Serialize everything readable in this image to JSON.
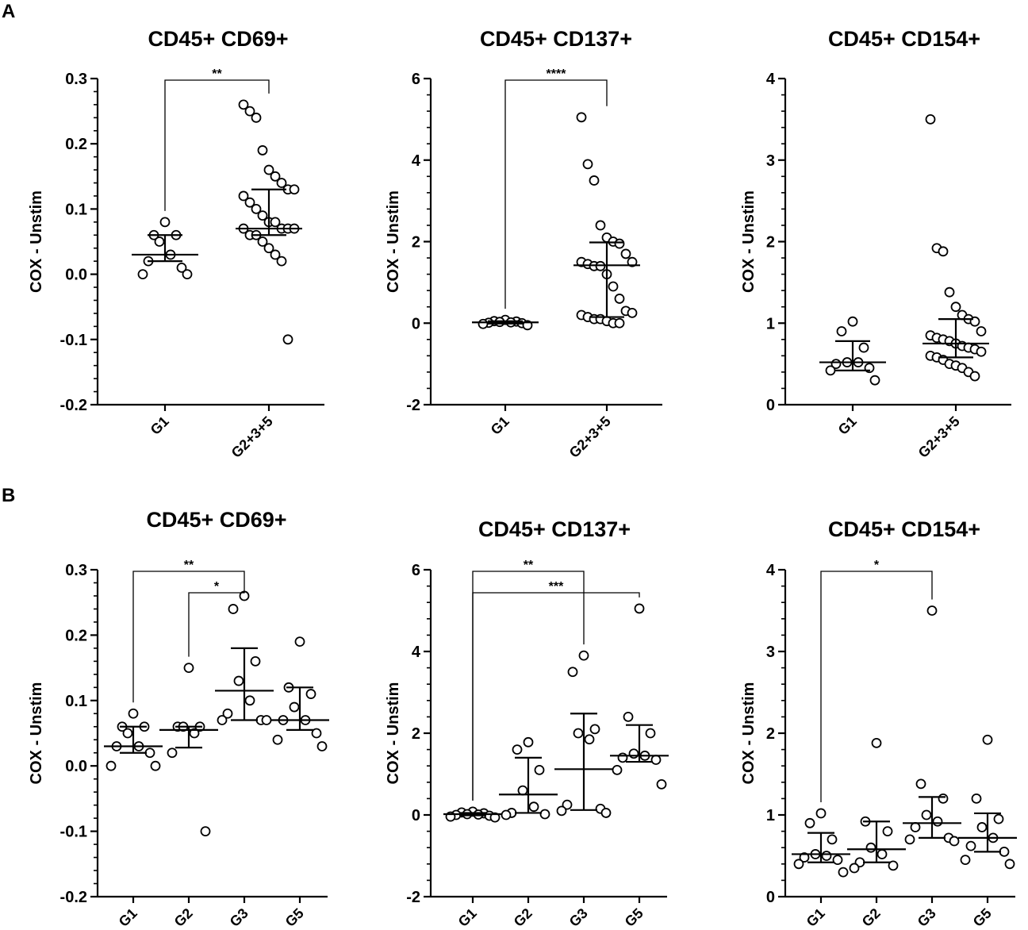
{
  "figure": {
    "panel_a_label": "A",
    "panel_b_label": "B"
  },
  "chart_data": [
    {
      "id": "A1",
      "type": "scatter",
      "title": "CD45+ CD69+",
      "ylabel": "COX - Unstim",
      "xlabel": "",
      "ylim": [
        -0.2,
        0.3
      ],
      "yticks": [
        -0.2,
        -0.1,
        0.0,
        0.1,
        0.2,
        0.3
      ],
      "ytick_labels": [
        "-0.2",
        "-0.1",
        "0.0",
        "0.1",
        "0.2",
        "0.3"
      ],
      "categories": [
        "G1",
        "G2+3+5"
      ],
      "series": [
        {
          "name": "G1",
          "points": [
            0.08,
            0.06,
            0.06,
            0.05,
            0.03,
            0.02,
            0.01,
            0.0,
            0.0
          ],
          "median": 0.03,
          "q1": 0.02,
          "q3": 0.06
        },
        {
          "name": "G2+3+5",
          "points": [
            0.26,
            0.25,
            0.24,
            0.19,
            0.16,
            0.15,
            0.14,
            0.13,
            0.13,
            0.12,
            0.11,
            0.1,
            0.09,
            0.08,
            0.08,
            0.07,
            0.07,
            0.07,
            0.07,
            0.06,
            0.06,
            0.05,
            0.04,
            0.03,
            0.02,
            -0.1
          ],
          "median": 0.07,
          "q1": 0.06,
          "q3": 0.13
        }
      ],
      "significance": [
        {
          "from": "G1",
          "to": "G2+3+5",
          "label": "**"
        }
      ]
    },
    {
      "id": "A2",
      "type": "scatter",
      "title": "CD45+ CD137+",
      "ylabel": "COX - Unstim",
      "xlabel": "",
      "ylim": [
        -2,
        6
      ],
      "yticks": [
        -2,
        0,
        2,
        4,
        6
      ],
      "ytick_labels": [
        "-2",
        "0",
        "2",
        "4",
        "6"
      ],
      "categories": [
        "G1",
        "G2+3+5"
      ],
      "series": [
        {
          "name": "G1",
          "points": [
            0.08,
            0.05,
            0.04,
            0.03,
            0.02,
            0.01,
            0.0,
            -0.02,
            -0.05
          ],
          "median": 0.02,
          "q1": -0.01,
          "q3": 0.05
        },
        {
          "name": "G2+3+5",
          "points": [
            5.05,
            3.9,
            3.5,
            2.4,
            2.1,
            2.0,
            1.95,
            1.7,
            1.5,
            1.5,
            1.45,
            1.4,
            1.4,
            1.2,
            0.9,
            0.6,
            0.3,
            0.25,
            0.2,
            0.15,
            0.1,
            0.1,
            0.05,
            0.0,
            0.0
          ],
          "median": 1.42,
          "q1": 0.15,
          "q3": 1.98
        }
      ],
      "significance": [
        {
          "from": "G1",
          "to": "G2+3+5",
          "label": "****"
        }
      ]
    },
    {
      "id": "A3",
      "type": "scatter",
      "title": "CD45+ CD154+",
      "ylabel": "COX - Unstim",
      "xlabel": "",
      "ylim": [
        0,
        4
      ],
      "yticks": [
        0,
        1,
        2,
        3,
        4
      ],
      "ytick_labels": [
        "0",
        "1",
        "2",
        "3",
        "4"
      ],
      "categories": [
        "G1",
        "G2+3+5"
      ],
      "series": [
        {
          "name": "G1",
          "points": [
            1.02,
            0.9,
            0.7,
            0.52,
            0.52,
            0.5,
            0.45,
            0.42,
            0.3
          ],
          "median": 0.52,
          "q1": 0.42,
          "q3": 0.78
        },
        {
          "name": "G2+3+5",
          "points": [
            3.5,
            1.92,
            1.88,
            1.38,
            1.2,
            1.1,
            1.05,
            1.02,
            0.9,
            0.85,
            0.82,
            0.8,
            0.78,
            0.75,
            0.72,
            0.7,
            0.68,
            0.65,
            0.6,
            0.58,
            0.55,
            0.5,
            0.48,
            0.45,
            0.4,
            0.35
          ],
          "median": 0.75,
          "q1": 0.58,
          "q3": 1.05
        }
      ],
      "significance": []
    },
    {
      "id": "B1",
      "type": "scatter",
      "title": "CD45+ CD69+",
      "ylabel": "COX - Unstim",
      "xlabel": "",
      "ylim": [
        -0.2,
        0.3
      ],
      "yticks": [
        -0.2,
        -0.1,
        0.0,
        0.1,
        0.2,
        0.3
      ],
      "ytick_labels": [
        "-0.2",
        "-0.1",
        "0.0",
        "0.1",
        "0.2",
        "0.3"
      ],
      "categories": [
        "G1",
        "G2",
        "G3",
        "G5"
      ],
      "series": [
        {
          "name": "G1",
          "points": [
            0.08,
            0.06,
            0.06,
            0.05,
            0.03,
            0.03,
            0.02,
            0.0,
            0.0
          ],
          "median": 0.03,
          "q1": 0.02,
          "q3": 0.06
        },
        {
          "name": "G2",
          "points": [
            0.15,
            0.06,
            0.06,
            0.06,
            0.05,
            0.02,
            -0.1
          ],
          "median": 0.055,
          "q1": 0.028,
          "q3": 0.06
        },
        {
          "name": "G3",
          "points": [
            0.26,
            0.24,
            0.16,
            0.13,
            0.1,
            0.08,
            0.07,
            0.07,
            0.07
          ],
          "median": 0.115,
          "q1": 0.07,
          "q3": 0.18
        },
        {
          "name": "G5",
          "points": [
            0.19,
            0.12,
            0.11,
            0.09,
            0.07,
            0.07,
            0.05,
            0.04,
            0.03
          ],
          "median": 0.07,
          "q1": 0.055,
          "q3": 0.12
        }
      ],
      "significance": [
        {
          "from": "G1",
          "to": "G3",
          "label": "**"
        },
        {
          "from": "G2",
          "to": "G3",
          "label": "*"
        }
      ]
    },
    {
      "id": "B2",
      "type": "scatter",
      "title": "CD45+ CD137+",
      "ylabel": "COX - Unstim",
      "xlabel": "",
      "ylim": [
        -2,
        6
      ],
      "yticks": [
        -2,
        0,
        2,
        4,
        6
      ],
      "ytick_labels": [
        "-2",
        "0",
        "2",
        "4",
        "6"
      ],
      "categories": [
        "G1",
        "G2",
        "G3",
        "G5"
      ],
      "series": [
        {
          "name": "G1",
          "points": [
            0.08,
            0.06,
            0.04,
            0.02,
            0.01,
            0.0,
            -0.02,
            -0.04,
            -0.06
          ],
          "median": 0.02,
          "q1": -0.01,
          "q3": 0.05
        },
        {
          "name": "G2",
          "points": [
            1.78,
            1.6,
            1.1,
            0.6,
            0.2,
            0.05,
            0.02,
            0.0
          ],
          "median": 0.5,
          "q1": 0.05,
          "q3": 1.4
        },
        {
          "name": "G3",
          "points": [
            3.9,
            3.5,
            2.1,
            2.0,
            1.85,
            0.25,
            0.15,
            0.1,
            0.05
          ],
          "median": 1.12,
          "q1": 0.12,
          "q3": 2.48
        },
        {
          "name": "G5",
          "points": [
            5.05,
            2.4,
            2.0,
            1.5,
            1.45,
            1.4,
            1.35,
            1.1,
            0.75
          ],
          "median": 1.45,
          "q1": 1.3,
          "q3": 2.2
        }
      ],
      "significance": [
        {
          "from": "G1",
          "to": "G3",
          "label": "**"
        },
        {
          "from": "G1",
          "to": "G5",
          "label": "***"
        }
      ]
    },
    {
      "id": "B3",
      "type": "scatter",
      "title": "CD45+ CD154+",
      "ylabel": "COX - Unstim",
      "xlabel": "",
      "ylim": [
        0,
        4
      ],
      "yticks": [
        0,
        1,
        2,
        3,
        4
      ],
      "ytick_labels": [
        "0",
        "1",
        "2",
        "3",
        "4"
      ],
      "categories": [
        "G1",
        "G2",
        "G3",
        "G5"
      ],
      "series": [
        {
          "name": "G1",
          "points": [
            1.02,
            0.9,
            0.7,
            0.52,
            0.5,
            0.48,
            0.45,
            0.4,
            0.3
          ],
          "median": 0.52,
          "q1": 0.42,
          "q3": 0.78
        },
        {
          "name": "G2",
          "points": [
            1.88,
            0.92,
            0.8,
            0.6,
            0.52,
            0.42,
            0.38,
            0.35
          ],
          "median": 0.58,
          "q1": 0.42,
          "q3": 0.92
        },
        {
          "name": "G3",
          "points": [
            3.5,
            1.38,
            1.2,
            1.0,
            0.92,
            0.85,
            0.72,
            0.7,
            0.68
          ],
          "median": 0.9,
          "q1": 0.72,
          "q3": 1.22
        },
        {
          "name": "G5",
          "points": [
            1.92,
            1.2,
            0.95,
            0.85,
            0.72,
            0.62,
            0.55,
            0.45,
            0.4
          ],
          "median": 0.72,
          "q1": 0.55,
          "q3": 1.02
        }
      ],
      "significance": [
        {
          "from": "G1",
          "to": "G3",
          "label": "*"
        }
      ]
    }
  ]
}
